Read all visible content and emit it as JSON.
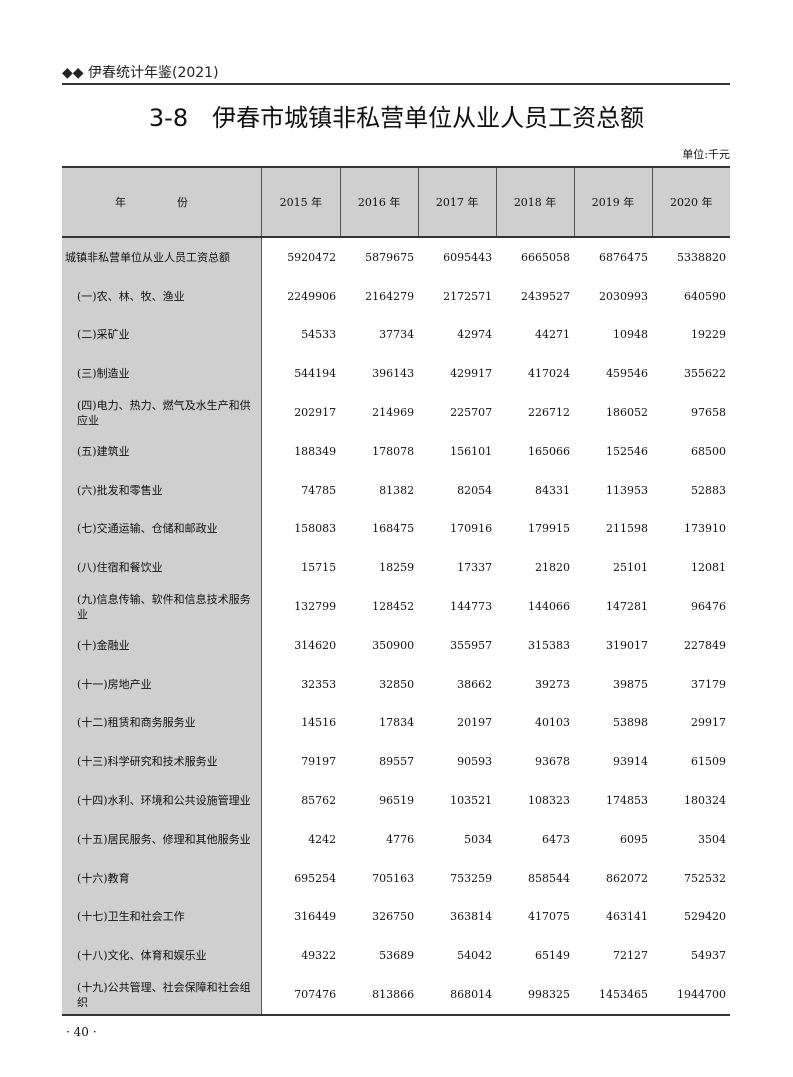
{
  "running_head": "◆◆ 伊春统计年鉴(2021)",
  "title": "3-8　伊春市城镇非私营单位从业人员工资总额",
  "unit": "单位:千元",
  "columns": [
    "年　份",
    "2015 年",
    "2016 年",
    "2017 年",
    "2018 年",
    "2019 年",
    "2020 年"
  ],
  "rows": [
    {
      "label": "城镇非私营单位从业人员工资总额",
      "values": [
        "5920472",
        "5879675",
        "6095443",
        "6665058",
        "6876475",
        "5338820"
      ]
    },
    {
      "label": "(一)农、林、牧、渔业",
      "values": [
        "2249906",
        "2164279",
        "2172571",
        "2439527",
        "2030993",
        "640590"
      ]
    },
    {
      "label": "(二)采矿业",
      "values": [
        "54533",
        "37734",
        "42974",
        "44271",
        "10948",
        "19229"
      ]
    },
    {
      "label": "(三)制造业",
      "values": [
        "544194",
        "396143",
        "429917",
        "417024",
        "459546",
        "355622"
      ]
    },
    {
      "label": "(四)电力、热力、燃气及水生产和供应业",
      "values": [
        "202917",
        "214969",
        "225707",
        "226712",
        "186052",
        "97658"
      ]
    },
    {
      "label": "(五)建筑业",
      "values": [
        "188349",
        "178078",
        "156101",
        "165066",
        "152546",
        "68500"
      ]
    },
    {
      "label": "(六)批发和零售业",
      "values": [
        "74785",
        "81382",
        "82054",
        "84331",
        "113953",
        "52883"
      ]
    },
    {
      "label": "(七)交通运输、仓储和邮政业",
      "values": [
        "158083",
        "168475",
        "170916",
        "179915",
        "211598",
        "173910"
      ]
    },
    {
      "label": "(八)住宿和餐饮业",
      "values": [
        "15715",
        "18259",
        "17337",
        "21820",
        "25101",
        "12081"
      ]
    },
    {
      "label": "(九)信息传输、软件和信息技术服务业",
      "values": [
        "132799",
        "128452",
        "144773",
        "144066",
        "147281",
        "96476"
      ]
    },
    {
      "label": "(十)金融业",
      "values": [
        "314620",
        "350900",
        "355957",
        "315383",
        "319017",
        "227849"
      ]
    },
    {
      "label": "(十一)房地产业",
      "values": [
        "32353",
        "32850",
        "38662",
        "39273",
        "39875",
        "37179"
      ]
    },
    {
      "label": "(十二)租赁和商务服务业",
      "values": [
        "14516",
        "17834",
        "20197",
        "40103",
        "53898",
        "29917"
      ]
    },
    {
      "label": "(十三)科学研究和技术服务业",
      "values": [
        "79197",
        "89557",
        "90593",
        "93678",
        "93914",
        "61509"
      ]
    },
    {
      "label": "(十四)水利、环境和公共设施管理业",
      "values": [
        "85762",
        "96519",
        "103521",
        "108323",
        "174853",
        "180324"
      ]
    },
    {
      "label": "(十五)居民服务、修理和其他服务业",
      "values": [
        "4242",
        "4776",
        "5034",
        "6473",
        "6095",
        "3504"
      ]
    },
    {
      "label": "(十六)教育",
      "values": [
        "695254",
        "705163",
        "753259",
        "858544",
        "862072",
        "752532"
      ]
    },
    {
      "label": "(十七)卫生和社会工作",
      "values": [
        "316449",
        "326750",
        "363814",
        "417075",
        "463141",
        "529420"
      ]
    },
    {
      "label": "(十八)文化、体育和娱乐业",
      "values": [
        "49322",
        "53689",
        "54042",
        "65149",
        "72127",
        "54937"
      ]
    },
    {
      "label": "(十九)公共管理、社会保障和社会组织",
      "values": [
        "707476",
        "813866",
        "868014",
        "998325",
        "1453465",
        "1944700"
      ]
    }
  ],
  "page_number": "· 40 ·"
}
